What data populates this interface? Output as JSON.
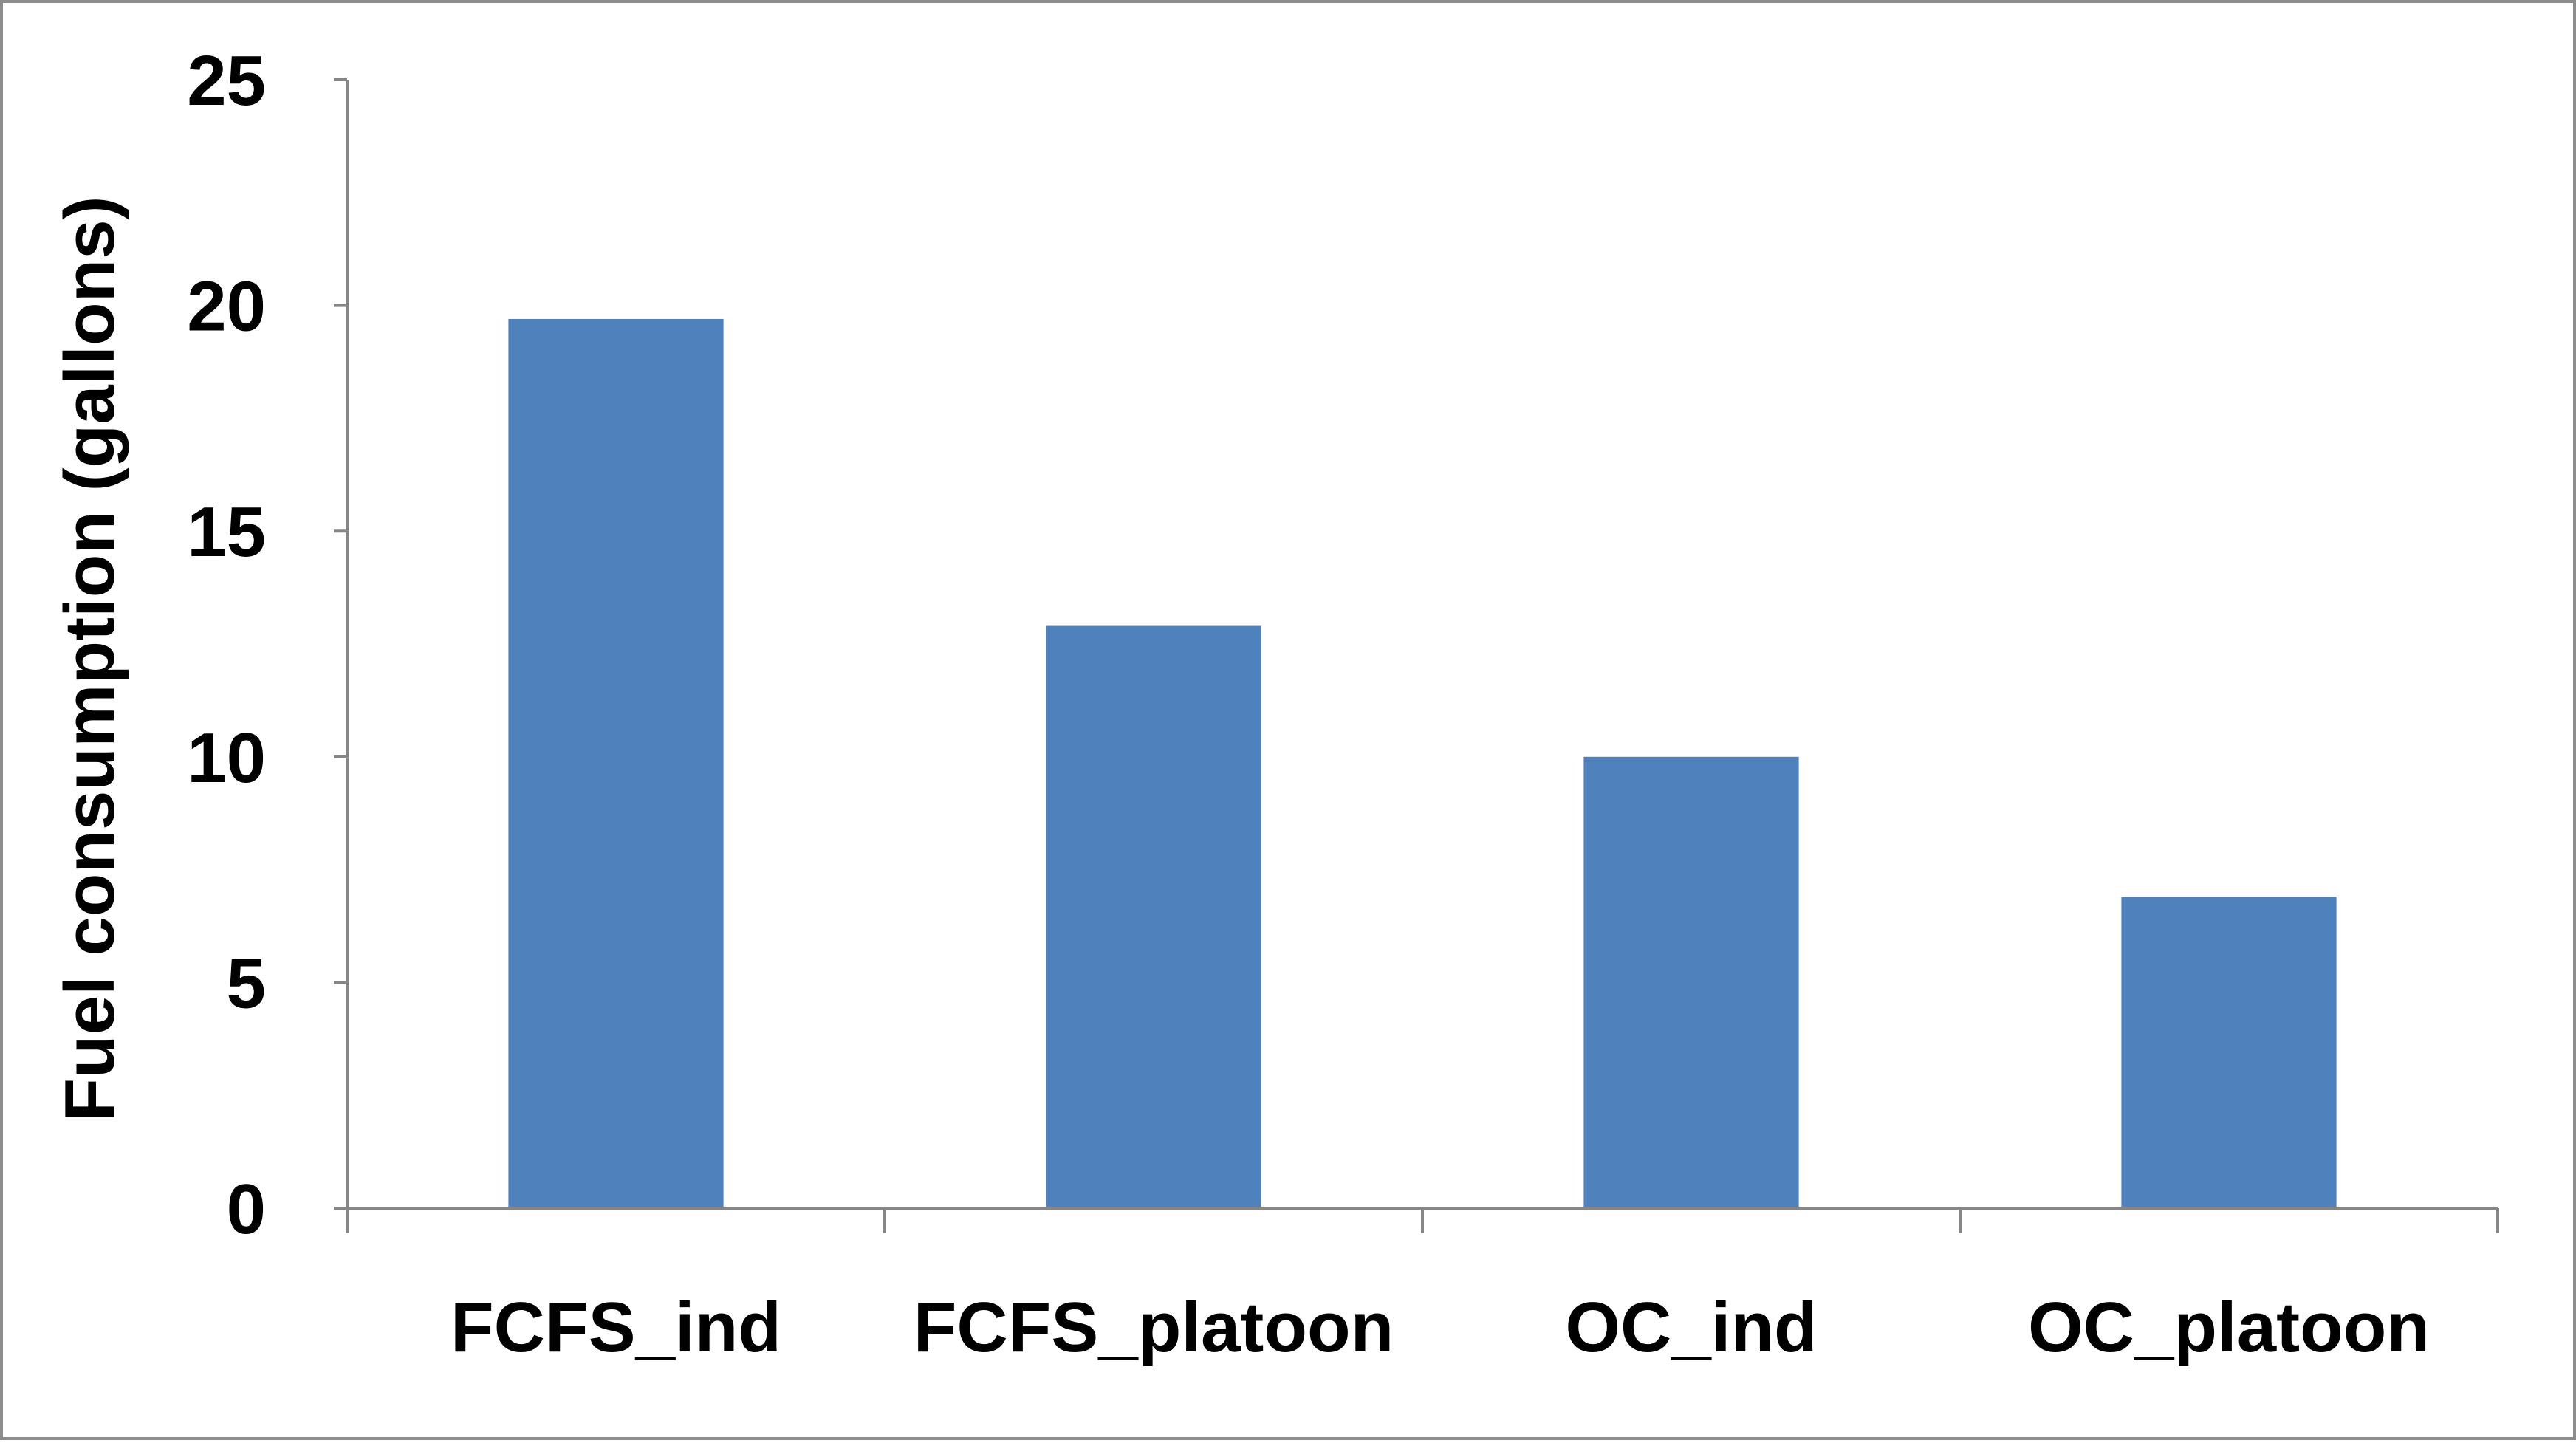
{
  "chart_data": {
    "type": "bar",
    "categories": [
      "FCFS_ind",
      "FCFS_platoon",
      "OC_ind",
      "OC_platoon"
    ],
    "values": [
      19.7,
      12.9,
      10.0,
      6.9
    ],
    "title": "",
    "xlabel": "",
    "ylabel": "Fuel consumption (gallons)",
    "ylim": [
      0,
      25
    ],
    "yticks": [
      0,
      5,
      10,
      15,
      20,
      25
    ],
    "grid": false,
    "legend": "none",
    "colors": {
      "bar": "#4F81BD",
      "axis": "#868686",
      "border": "#8c8c8c"
    }
  }
}
